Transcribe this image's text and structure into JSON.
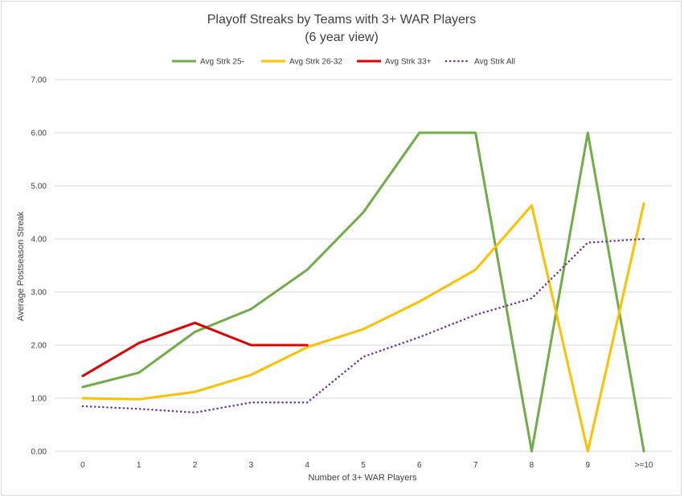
{
  "chart_data": {
    "type": "line",
    "title": "Playoff Streaks by Teams with 3+ WAR Players",
    "subtitle": "(6 year view)",
    "xlabel": "Number of 3+ WAR Players",
    "ylabel": "Average Postseason Streak",
    "categories": [
      "0",
      "1",
      "2",
      "3",
      "4",
      "5",
      "6",
      "7",
      "8",
      "9",
      ">=10"
    ],
    "y_ticks": [
      "0.00",
      "1.00",
      "2.00",
      "3.00",
      "4.00",
      "5.00",
      "6.00",
      "7.00"
    ],
    "ylim": [
      0,
      7
    ],
    "grid": true,
    "legend_position": "top",
    "series": [
      {
        "name": "Avg Strk 25-",
        "color": "#70ad47",
        "style": "solid",
        "values": [
          1.21,
          1.48,
          2.25,
          2.68,
          3.42,
          4.5,
          6.0,
          6.0,
          0.0,
          6.0,
          0.0
        ]
      },
      {
        "name": "Avg Strk 26-32",
        "color": "#ffc000",
        "style": "solid",
        "values": [
          1.0,
          0.98,
          1.12,
          1.44,
          1.96,
          2.3,
          2.82,
          3.42,
          4.63,
          0.0,
          4.67
        ]
      },
      {
        "name": "Avg Strk 33+",
        "color": "#e00000",
        "style": "solid",
        "values": [
          1.42,
          2.04,
          2.42,
          2.0,
          2.0,
          null,
          null,
          null,
          null,
          null,
          null
        ]
      },
      {
        "name": "Avg Strk All",
        "color": "#7030a0",
        "style": "dotted",
        "values": [
          0.85,
          0.8,
          0.73,
          0.92,
          0.92,
          1.78,
          2.15,
          2.57,
          2.88,
          3.93,
          4.0
        ]
      }
    ]
  }
}
